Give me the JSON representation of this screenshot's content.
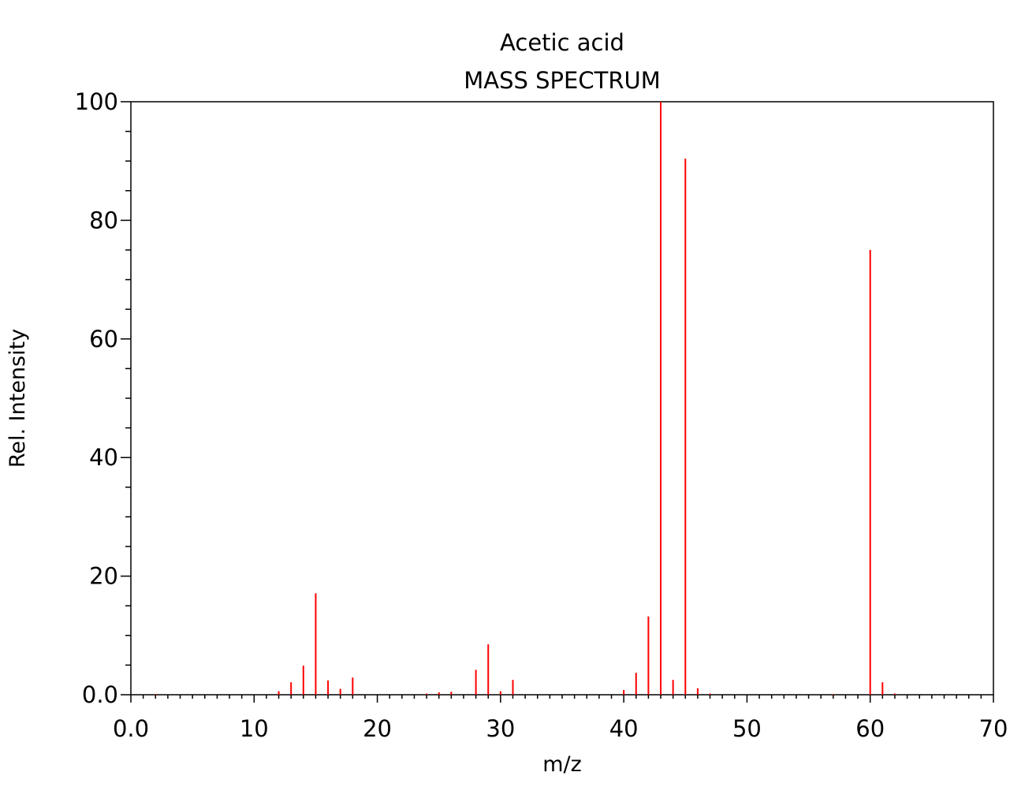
{
  "chart_data": {
    "type": "bar",
    "title": "Acetic acid",
    "subtitle": "MASS SPECTRUM",
    "xlabel": "m/z",
    "ylabel": "Rel. Intensity",
    "xlim": [
      0,
      70
    ],
    "ylim": [
      0,
      100
    ],
    "x_ticks": [
      "0.0",
      "10",
      "20",
      "30",
      "40",
      "50",
      "60",
      "70"
    ],
    "y_ticks": [
      "0.0",
      "20",
      "40",
      "60",
      "80",
      "100"
    ],
    "grid": false,
    "bar_color": "#ff0000",
    "peaks": [
      {
        "mz": 2,
        "intensity": 0.1
      },
      {
        "mz": 12,
        "intensity": 0.6
      },
      {
        "mz": 13,
        "intensity": 2.1
      },
      {
        "mz": 14,
        "intensity": 4.9
      },
      {
        "mz": 15,
        "intensity": 17.1
      },
      {
        "mz": 16,
        "intensity": 2.4
      },
      {
        "mz": 17,
        "intensity": 1.0
      },
      {
        "mz": 18,
        "intensity": 2.9
      },
      {
        "mz": 24,
        "intensity": 0.2
      },
      {
        "mz": 25,
        "intensity": 0.4
      },
      {
        "mz": 26,
        "intensity": 0.5
      },
      {
        "mz": 28,
        "intensity": 4.2
      },
      {
        "mz": 29,
        "intensity": 8.5
      },
      {
        "mz": 30,
        "intensity": 0.6
      },
      {
        "mz": 31,
        "intensity": 2.5
      },
      {
        "mz": 40,
        "intensity": 0.8
      },
      {
        "mz": 41,
        "intensity": 3.7
      },
      {
        "mz": 42,
        "intensity": 13.2
      },
      {
        "mz": 43,
        "intensity": 100
      },
      {
        "mz": 44,
        "intensity": 2.5
      },
      {
        "mz": 45,
        "intensity": 90.4
      },
      {
        "mz": 46,
        "intensity": 1.1
      },
      {
        "mz": 47,
        "intensity": 0.2
      },
      {
        "mz": 57,
        "intensity": 0.1
      },
      {
        "mz": 60,
        "intensity": 75.0
      },
      {
        "mz": 61,
        "intensity": 2.1
      },
      {
        "mz": 62,
        "intensity": 0.2
      }
    ]
  }
}
